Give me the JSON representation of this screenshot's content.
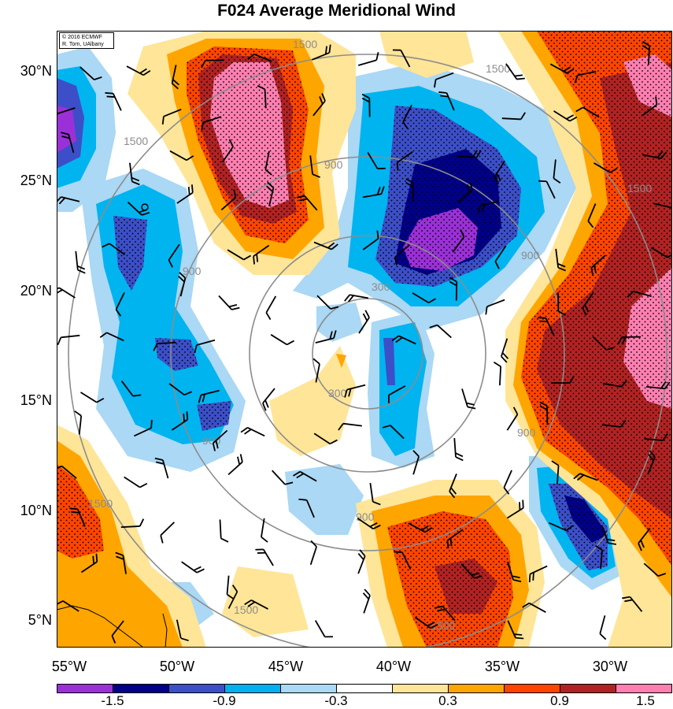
{
  "title": "F024 Average Meridional Wind",
  "copyright": [
    "© 2016 ECMWF",
    "R. Torn, UAlbany"
  ],
  "latitude_labels": [
    "30°N",
    "25°N",
    "20°N",
    "15°N",
    "10°N",
    "5°N"
  ],
  "longitude_labels": [
    "55°W",
    "50°W",
    "45°W",
    "40°W",
    "35°W",
    "30°W"
  ],
  "colorbar": {
    "labels": [
      "-1.5",
      "-0.9",
      "-0.3",
      "0.3",
      "0.9",
      "1.5"
    ],
    "colors": [
      "#9b30d8",
      "#00008b",
      "#3c4fc8",
      "#00b0f0",
      "#aad8f5",
      "#ffffff",
      "#ffe598",
      "#ffa500",
      "#ff4500",
      "#b22222",
      "#ff7fb0"
    ]
  },
  "contour_labels": [
    "1500",
    "1500",
    "1500",
    "1500",
    "1500",
    "1500",
    "1500",
    "900",
    "900",
    "900",
    "900",
    "900",
    "900",
    "300",
    "300"
  ],
  "colors": {
    "purple": "#9b30d8",
    "navy": "#00008b",
    "blue": "#3c4fc8",
    "cyan": "#00b4f0",
    "lightblue": "#aad8f5",
    "lightyellow": "#ffe598",
    "orange": "#ffa500",
    "redorange": "#ff4500",
    "darkred": "#b22222",
    "pink": "#ff7fb0"
  }
}
